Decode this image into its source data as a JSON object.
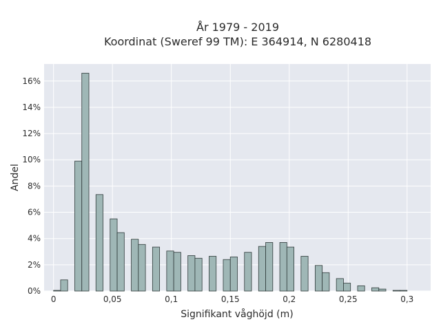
{
  "chart_data": {
    "type": "bar",
    "title_line1": "År 1979 - 2019",
    "title_line2": "Koordinat (Sweref 99 TM): E 364914, N 6280418",
    "xlabel": "Signifikant våghöjd (m)",
    "ylabel": "Andel",
    "xlim": [
      -0.008,
      0.32
    ],
    "ylim": [
      0,
      17.3
    ],
    "x_ticks": [
      {
        "value": 0,
        "label": "0"
      },
      {
        "value": 0.05,
        "label": "0,05"
      },
      {
        "value": 0.1,
        "label": "0,1"
      },
      {
        "value": 0.15,
        "label": "0,15"
      },
      {
        "value": 0.2,
        "label": "0,2"
      },
      {
        "value": 0.25,
        "label": "0,25"
      },
      {
        "value": 0.3,
        "label": "0,3"
      }
    ],
    "y_ticks": [
      {
        "value": 0,
        "label": "0%"
      },
      {
        "value": 2,
        "label": "2%"
      },
      {
        "value": 4,
        "label": "4%"
      },
      {
        "value": 6,
        "label": "6%"
      },
      {
        "value": 8,
        "label": "8%"
      },
      {
        "value": 10,
        "label": "10%"
      },
      {
        "value": 12,
        "label": "12%"
      },
      {
        "value": 14,
        "label": "14%"
      },
      {
        "value": 16,
        "label": "16%"
      }
    ],
    "bar_width": 0.003,
    "bars": [
      {
        "x": 0.0015,
        "y": 0.05
      },
      {
        "x": 0.0045,
        "y": 0.85
      },
      {
        "x": 0.0105,
        "y": 9.9
      },
      {
        "x": 0.0135,
        "y": 16.6
      },
      {
        "x": 0.0195,
        "y": 7.35
      },
      {
        "x": 0.0255,
        "y": 5.5
      },
      {
        "x": 0.0285,
        "y": 4.45
      },
      {
        "x": 0.0345,
        "y": 3.95
      },
      {
        "x": 0.0375,
        "y": 3.55
      },
      {
        "x": 0.0435,
        "y": 3.35
      },
      {
        "x": 0.0495,
        "y": 3.05
      },
      {
        "x": 0.0525,
        "y": 2.95
      },
      {
        "x": 0.0585,
        "y": 2.7
      },
      {
        "x": 0.0615,
        "y": 2.5
      },
      {
        "x": 0.0675,
        "y": 2.65
      },
      {
        "x": 0.0735,
        "y": 2.4
      },
      {
        "x": 0.0765,
        "y": 2.6
      },
      {
        "x": 0.0825,
        "y": 2.95
      },
      {
        "x": 0.0885,
        "y": 3.4
      },
      {
        "x": 0.0915,
        "y": 3.7
      },
      {
        "x": 0.0975,
        "y": 3.7
      },
      {
        "x": 0.1005,
        "y": 3.35
      },
      {
        "x": 0.1065,
        "y": 2.65
      },
      {
        "x": 0.1125,
        "y": 1.95
      },
      {
        "x": 0.1155,
        "y": 1.4
      },
      {
        "x": 0.1215,
        "y": 0.95
      },
      {
        "x": 0.1245,
        "y": 0.6
      },
      {
        "x": 0.1305,
        "y": 0.4
      },
      {
        "x": 0.1365,
        "y": 0.25
      },
      {
        "x": 0.1395,
        "y": 0.15
      },
      {
        "x": 0.1455,
        "y": 0.05
      },
      {
        "x": 0.1485,
        "y": 0.05
      }
    ],
    "x_scale_factor": 2,
    "colors": {
      "plot_background": "#e5e8ef",
      "grid": "#ffffff",
      "bar_fill": "#9fb7b6",
      "bar_stroke": "#2f3a3a"
    }
  }
}
